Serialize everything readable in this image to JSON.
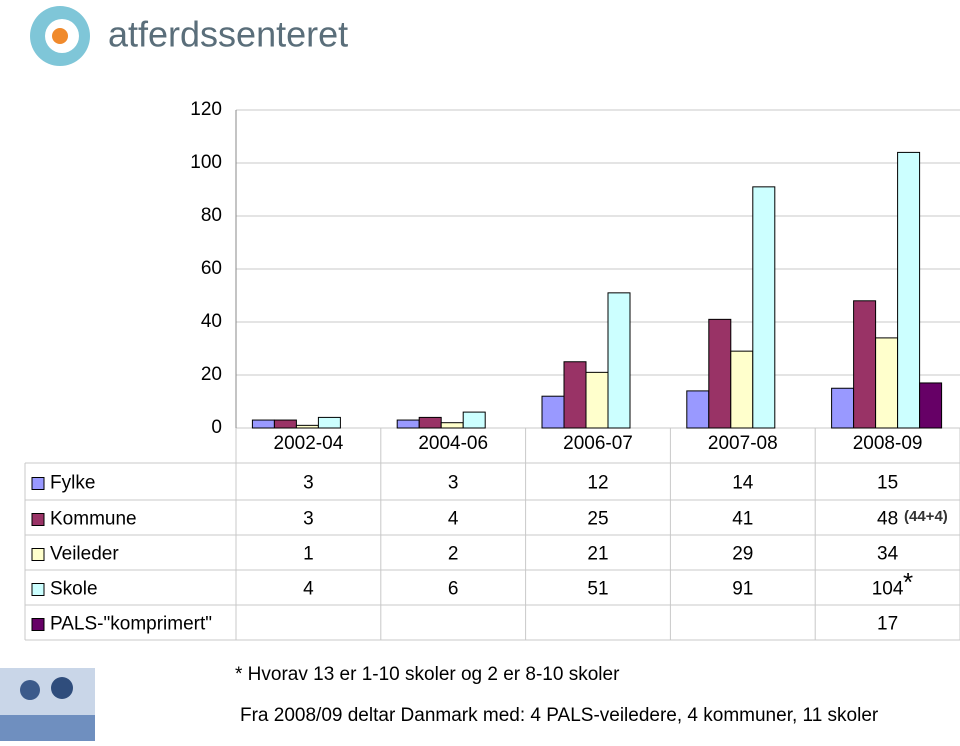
{
  "logo_text": "atferdssenteret",
  "chart_data": {
    "type": "bar",
    "categories": [
      "2002-04",
      "2004-06",
      "2006-07",
      "2007-08",
      "2008-09"
    ],
    "series": [
      {
        "name": "Fylke",
        "color": "#9999ff",
        "values": [
          3,
          3,
          12,
          14,
          15
        ]
      },
      {
        "name": "Kommune",
        "color": "#993366",
        "values": [
          3,
          4,
          25,
          41,
          48
        ]
      },
      {
        "name": "Veileder",
        "color": "#ffffcc",
        "values": [
          1,
          2,
          21,
          29,
          34
        ]
      },
      {
        "name": "Skole",
        "color": "#ccffff",
        "values": [
          4,
          6,
          51,
          91,
          104
        ]
      },
      {
        "name": "PALS-\"komprimert\"",
        "color": "#660066",
        "values": [
          null,
          null,
          null,
          null,
          17
        ]
      }
    ],
    "ylim": [
      0,
      120
    ],
    "yticks": [
      0,
      20,
      40,
      60,
      80,
      100,
      120
    ],
    "grid": true,
    "annotations": [
      "(44+4)",
      "*"
    ],
    "footnotes": [
      "* Hvorav 13 er 1-10 skoler og 2 er 8-10 skoler",
      "Fra 2008/09 deltar Danmark med: 4 PALS-veiledere, 4 kommuner, 11 skoler"
    ]
  }
}
